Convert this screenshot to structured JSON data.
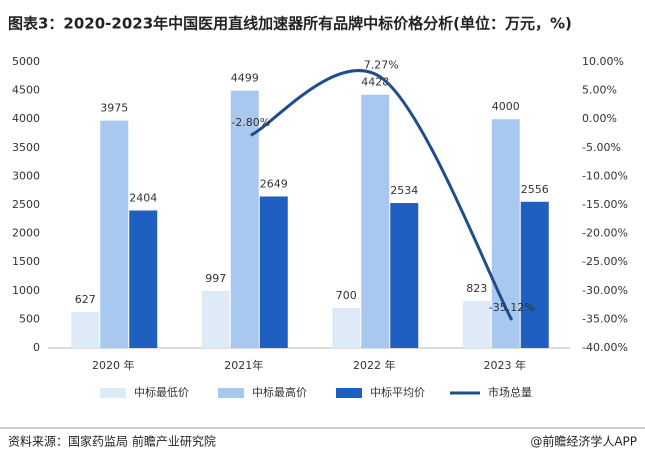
{
  "chart_data": {
    "type": "bar",
    "title": "图表3：2020-2023年中国医用直线加速器所有品牌中标价格分析(单位：万元，%)",
    "source": "资料来源：国家药监局 前瞻产业研究院",
    "credit": "@前瞻经济学人APP",
    "categories": [
      "2020 年",
      "2021年",
      "2022 年",
      "2023 年"
    ],
    "series": [
      {
        "name": "中标最低价",
        "color": "#deeaf8",
        "values": [
          627,
          997,
          700,
          823
        ]
      },
      {
        "name": "中标最高价",
        "color": "#a9c8f0",
        "values": [
          3975,
          4499,
          4428,
          4000
        ]
      },
      {
        "name": "中标平均价",
        "color": "#1f5fbf",
        "values": [
          2404,
          2649,
          2534,
          2556
        ]
      },
      {
        "name": "市场总量",
        "color": "#1f4e8c",
        "type": "line",
        "axis": "y2",
        "values": [
          null,
          -2.8,
          7.27,
          -35.12
        ],
        "value_labels": [
          null,
          "-2.80%",
          "7.27%",
          "-35.12%"
        ]
      }
    ],
    "ylim": [
      0,
      5000
    ],
    "yticks": [
      0,
      500,
      1000,
      1500,
      2000,
      2500,
      3000,
      3500,
      4000,
      4500,
      5000
    ],
    "y2lim": [
      -40,
      10
    ],
    "y2ticks": [
      {
        "value": -40,
        "label": "-40.00%"
      },
      {
        "value": -35,
        "label": "-35.00%"
      },
      {
        "value": -30,
        "label": "-30.00%"
      },
      {
        "value": -25,
        "label": "-25.00%"
      },
      {
        "value": -20,
        "label": "-20.00%"
      },
      {
        "value": -15,
        "label": "-15.00%"
      },
      {
        "value": -10,
        "label": "-10.00%"
      },
      {
        "value": -5,
        "label": "-5.00%"
      },
      {
        "value": 0,
        "label": "0.00%"
      },
      {
        "value": 5,
        "label": "5.00%"
      },
      {
        "value": 10,
        "label": "10.00%"
      }
    ],
    "grid": false
  }
}
